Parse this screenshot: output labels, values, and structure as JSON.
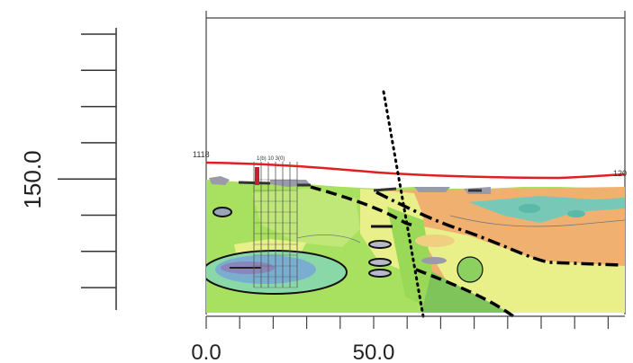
{
  "chart_data": {
    "type": "heatmap",
    "title": "",
    "xlabel": "",
    "ylabel": "150.0",
    "x_ticks": [
      {
        "value": 0.0,
        "label": "0.0"
      },
      {
        "value": 50.0,
        "label": "50.0"
      }
    ],
    "xlim": [
      0,
      125
    ],
    "y_left_ticks": [
      1,
      2,
      3,
      4,
      5,
      6,
      7,
      8
    ],
    "y_reference_tick": 5,
    "grid": false,
    "elevation_labels": {
      "left": "1118",
      "right": "120",
      "wells": "1(b) 10 3(0)"
    },
    "colors": {
      "surface_line": "#e02020",
      "green_base": "#a8e060",
      "green_dark": "#7fc45a",
      "yellow": "#e9f08a",
      "orange": "#f0b070",
      "teal": "#78c8b8",
      "gray": "#9a9aaa",
      "lines": "#000000"
    },
    "annotations": [
      "dotted fault line",
      "dash-dot boundaries",
      "dashed boundaries"
    ]
  }
}
